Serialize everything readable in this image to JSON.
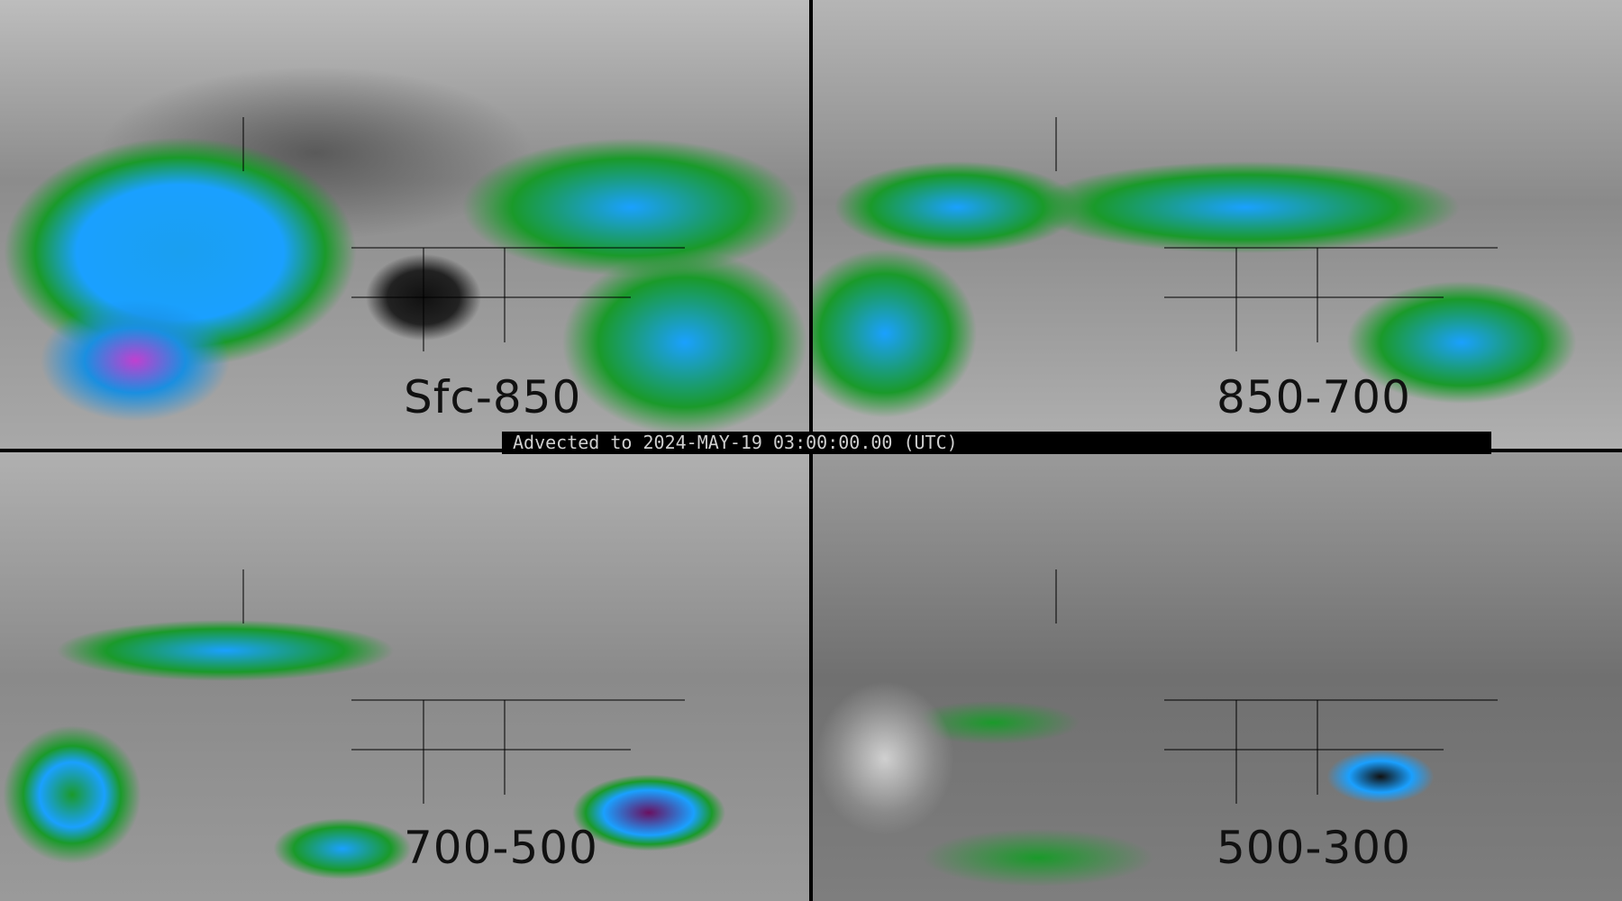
{
  "panels": [
    {
      "label": "Sfc-850"
    },
    {
      "label": "850-700"
    },
    {
      "label": "700-500"
    },
    {
      "label": "500-300"
    }
  ],
  "banner": {
    "text": "Advected to 2024-MAY-19 03:00:00.00 (UTC)"
  },
  "colors": {
    "low": "#8a8a8a",
    "green": "#1a9a2a",
    "blue": "#1aa0ff",
    "magenta": "#c040d0",
    "saturated": "#000000"
  }
}
